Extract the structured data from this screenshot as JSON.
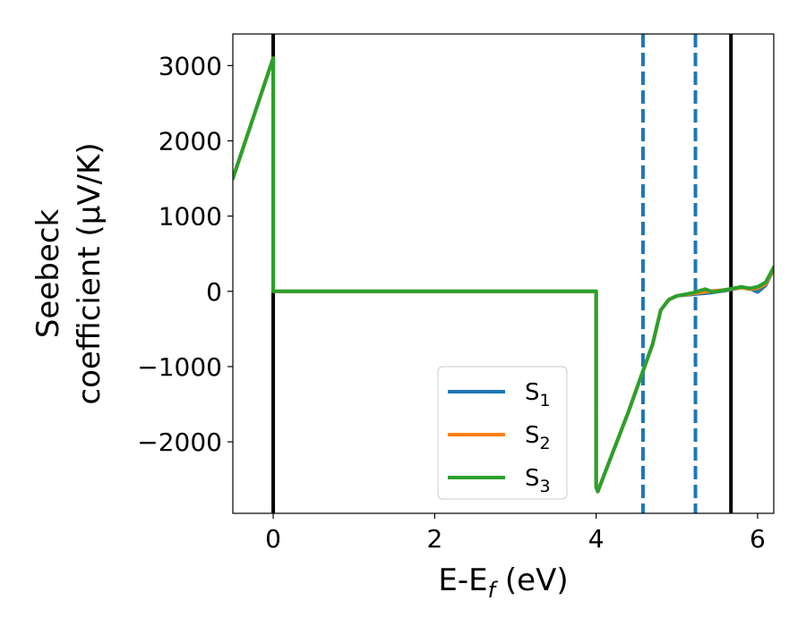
{
  "chart_data": {
    "type": "line",
    "xlabel_main": "E-E",
    "xlabel_sub": "f",
    "xlabel_unit": " (eV)",
    "ylabel_line1": "Seebeck",
    "ylabel_line2": "coefficient  (μV/K)",
    "xlim": [
      -0.5,
      6.2
    ],
    "ylim": [
      -2950,
      3420
    ],
    "xticks": [
      0,
      2,
      4,
      6
    ],
    "xtick_labels": [
      "0",
      "2",
      "4",
      "6"
    ],
    "yticks": [
      -2000,
      -1000,
      0,
      1000,
      2000,
      3000
    ],
    "ytick_labels": [
      "−2000",
      "−1000",
      "0",
      "1000",
      "2000",
      "3000"
    ],
    "grid": false,
    "legend_position": "lower-center",
    "vlines": [
      {
        "x": 0.0,
        "style": "solid",
        "color": "#000000"
      },
      {
        "x": 5.67,
        "style": "solid",
        "color": "#000000"
      },
      {
        "x": 4.58,
        "style": "dashed",
        "color": "#1f77b4"
      },
      {
        "x": 5.23,
        "style": "dashed",
        "color": "#1f77b4"
      }
    ],
    "series": [
      {
        "name": "S",
        "sub": "1",
        "color": "#1f77b4",
        "x": [
          -0.5,
          0.0,
          0.0,
          4.0,
          4.0,
          4.02,
          4.4,
          4.7,
          4.8,
          4.9,
          5.0,
          5.2,
          5.4,
          5.6,
          5.8,
          5.9,
          6.0,
          6.1,
          6.2
        ],
        "y": [
          1500,
          3100,
          0,
          0,
          -2600,
          -2660,
          -1600,
          -700,
          -250,
          -110,
          -60,
          -40,
          -20,
          10,
          50,
          40,
          -10,
          80,
          300
        ]
      },
      {
        "name": "S",
        "sub": "2",
        "color": "#ff7f0e",
        "x": [
          -0.5,
          0.0,
          0.0,
          4.0,
          4.0,
          4.02,
          4.4,
          4.7,
          4.8,
          4.9,
          5.0,
          5.2,
          5.4,
          5.6,
          5.8,
          5.9,
          6.0,
          6.1,
          6.2
        ],
        "y": [
          1500,
          3100,
          0,
          0,
          -2600,
          -2660,
          -1600,
          -700,
          -250,
          -110,
          -60,
          -30,
          0,
          20,
          50,
          30,
          40,
          100,
          300
        ]
      },
      {
        "name": "S",
        "sub": "3",
        "color": "#2ca02c",
        "x": [
          -0.5,
          0.0,
          0.0,
          4.0,
          4.0,
          4.02,
          4.4,
          4.7,
          4.8,
          4.9,
          5.0,
          5.2,
          5.35,
          5.45,
          5.6,
          5.8,
          5.9,
          6.0,
          6.1,
          6.2
        ],
        "y": [
          1500,
          3100,
          0,
          0,
          -2600,
          -2660,
          -1600,
          -700,
          -250,
          -110,
          -60,
          -20,
          30,
          -10,
          20,
          60,
          40,
          60,
          120,
          320
        ]
      }
    ]
  }
}
